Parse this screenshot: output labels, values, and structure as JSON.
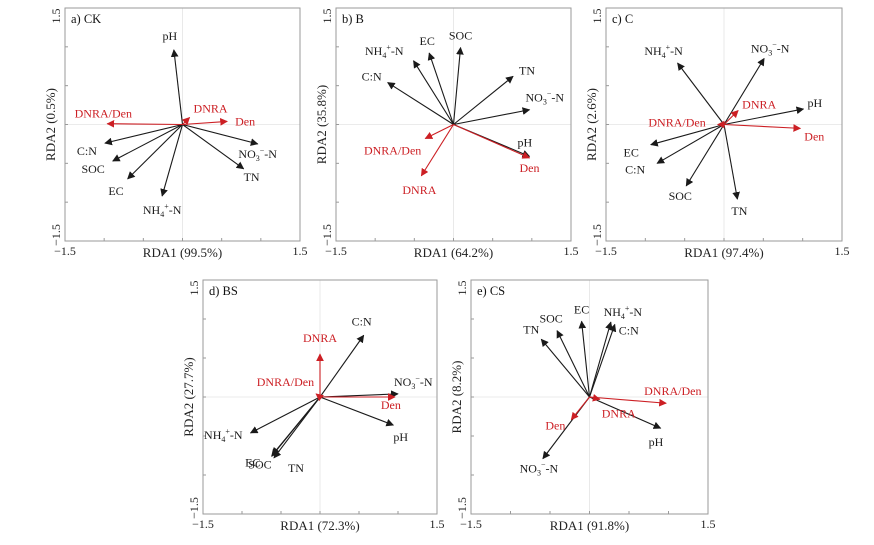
{
  "chart_data": [
    {
      "type": "scatter",
      "subtype": "rda-biplot",
      "panel": "a) CK",
      "xlabel": "RDA1 (99.5%)",
      "ylabel": "RDA2 (0.5%)",
      "xlim": [
        -1.5,
        1.5
      ],
      "ylim": [
        -1.5,
        1.5
      ],
      "x_tick_labels": [
        "−1.5",
        "1.5"
      ],
      "y_tick_labels": [
        "−1.5",
        "1.5"
      ],
      "colors": {
        "environment": "#1a1a1a",
        "response": "#cc1f24"
      },
      "vectors": [
        {
          "name": "pH",
          "group": "environment",
          "x": -0.11,
          "y": 0.96
        },
        {
          "name": "C:N",
          "group": "environment",
          "x": -0.99,
          "y": -0.24
        },
        {
          "name": "SOC",
          "group": "environment",
          "x": -0.89,
          "y": -0.47
        },
        {
          "name": "EC",
          "group": "environment",
          "x": -0.7,
          "y": -0.7
        },
        {
          "name": "NH4+-N",
          "group": "environment",
          "x": -0.26,
          "y": -0.92
        },
        {
          "name": "NO3−-N",
          "group": "environment",
          "x": 0.96,
          "y": -0.25
        },
        {
          "name": "TN",
          "group": "environment",
          "x": 0.78,
          "y": -0.57
        },
        {
          "name": "DNRA/Den",
          "group": "response",
          "x": -0.96,
          "y": 0.01
        },
        {
          "name": "DNRA",
          "group": "response",
          "x": 0.09,
          "y": 0.09
        },
        {
          "name": "Den",
          "group": "response",
          "x": 0.57,
          "y": 0.04
        }
      ]
    },
    {
      "type": "scatter",
      "subtype": "rda-biplot",
      "panel": "b) B",
      "xlabel": "RDA1 (64.2%)",
      "ylabel": "RDA2 (35.8%)",
      "xlim": [
        -1.5,
        1.5
      ],
      "ylim": [
        -1.5,
        1.5
      ],
      "x_tick_labels": [
        "−1.5",
        "1.5"
      ],
      "y_tick_labels": [
        "−1.5",
        "1.5"
      ],
      "colors": {
        "environment": "#1a1a1a",
        "response": "#cc1f24"
      },
      "vectors": [
        {
          "name": "SOC",
          "group": "environment",
          "x": 0.09,
          "y": 0.99
        },
        {
          "name": "EC",
          "group": "environment",
          "x": -0.31,
          "y": 0.92
        },
        {
          "name": "NH4+-N",
          "group": "environment",
          "x": -0.51,
          "y": 0.82
        },
        {
          "name": "C:N",
          "group": "environment",
          "x": -0.84,
          "y": 0.54
        },
        {
          "name": "TN",
          "group": "environment",
          "x": 0.76,
          "y": 0.62
        },
        {
          "name": "NO3−-N",
          "group": "environment",
          "x": 0.97,
          "y": 0.19
        },
        {
          "name": "pH",
          "group": "environment",
          "x": 0.97,
          "y": -0.41
        },
        {
          "name": "Den",
          "group": "response",
          "x": 0.97,
          "y": -0.43
        },
        {
          "name": "DNRA/Den",
          "group": "response",
          "x": -0.36,
          "y": -0.18
        },
        {
          "name": "DNRA",
          "group": "response",
          "x": -0.41,
          "y": -0.66
        }
      ]
    },
    {
      "type": "scatter",
      "subtype": "rda-biplot",
      "panel": "c) C",
      "xlabel": "RDA1 (97.4%)",
      "ylabel": "RDA2 (2.6%)",
      "xlim": [
        -1.5,
        1.5
      ],
      "ylim": [
        -1.5,
        1.5
      ],
      "x_tick_labels": [
        "−1.5",
        "1.5"
      ],
      "y_tick_labels": [
        "−1.5",
        "1.5"
      ],
      "colors": {
        "environment": "#1a1a1a",
        "response": "#cc1f24"
      },
      "vectors": [
        {
          "name": "NH4+-N",
          "group": "environment",
          "x": -0.59,
          "y": 0.79
        },
        {
          "name": "NO3−-N",
          "group": "environment",
          "x": 0.51,
          "y": 0.85
        },
        {
          "name": "pH",
          "group": "environment",
          "x": 1.01,
          "y": 0.2
        },
        {
          "name": "EC",
          "group": "environment",
          "x": -0.93,
          "y": -0.26
        },
        {
          "name": "C:N",
          "group": "environment",
          "x": -0.85,
          "y": -0.5
        },
        {
          "name": "SOC",
          "group": "environment",
          "x": -0.48,
          "y": -0.79
        },
        {
          "name": "TN",
          "group": "environment",
          "x": 0.17,
          "y": -0.96
        },
        {
          "name": "Den",
          "group": "response",
          "x": 0.97,
          "y": -0.05
        },
        {
          "name": "DNRA",
          "group": "response",
          "x": 0.18,
          "y": 0.18
        },
        {
          "name": "DNRA/Den",
          "group": "response",
          "x": -0.08,
          "y": 0.0
        }
      ]
    },
    {
      "type": "scatter",
      "subtype": "rda-biplot",
      "panel": "d) BS",
      "xlabel": "RDA1 (72.3%)",
      "ylabel": "RDA2 (27.7%)",
      "xlim": [
        -1.5,
        1.5
      ],
      "ylim": [
        -1.5,
        1.5
      ],
      "x_tick_labels": [
        "−1.5",
        "1.5"
      ],
      "y_tick_labels": [
        "−1.5",
        "1.5"
      ],
      "colors": {
        "environment": "#1a1a1a",
        "response": "#cc1f24"
      },
      "vectors": [
        {
          "name": "C:N",
          "group": "environment",
          "x": 0.56,
          "y": 0.79
        },
        {
          "name": "NO3−-N",
          "group": "environment",
          "x": 1.0,
          "y": 0.04
        },
        {
          "name": "pH",
          "group": "environment",
          "x": 0.94,
          "y": -0.36
        },
        {
          "name": "NH4+-N",
          "group": "environment",
          "x": -0.89,
          "y": -0.46
        },
        {
          "name": "EC",
          "group": "environment",
          "x": -0.61,
          "y": -0.74
        },
        {
          "name": "SOC",
          "group": "environment",
          "x": -0.62,
          "y": -0.76
        },
        {
          "name": "TN",
          "group": "environment",
          "x": -0.59,
          "y": -0.78
        },
        {
          "name": "DNRA",
          "group": "response",
          "x": 0.0,
          "y": 0.55
        },
        {
          "name": "DNRA/Den",
          "group": "response",
          "x": -0.05,
          "y": 0.04
        },
        {
          "name": "Den",
          "group": "response",
          "x": 0.96,
          "y": 0.0
        }
      ]
    },
    {
      "type": "scatter",
      "subtype": "rda-biplot",
      "panel": "e) CS",
      "xlabel": "RDA1 (91.8%)",
      "ylabel": "RDA2 (8.2%)",
      "xlim": [
        -1.5,
        1.5
      ],
      "ylim": [
        -1.5,
        1.5
      ],
      "x_tick_labels": [
        "−1.5",
        "1.5"
      ],
      "y_tick_labels": [
        "−1.5",
        "1.5"
      ],
      "colors": {
        "environment": "#1a1a1a",
        "response": "#cc1f24"
      },
      "vectors": [
        {
          "name": "TN",
          "group": "environment",
          "x": -0.61,
          "y": 0.74
        },
        {
          "name": "SOC",
          "group": "environment",
          "x": -0.41,
          "y": 0.85
        },
        {
          "name": "EC",
          "group": "environment",
          "x": -0.1,
          "y": 0.97
        },
        {
          "name": "NH4+-N",
          "group": "environment",
          "x": 0.27,
          "y": 0.96
        },
        {
          "name": "C:N",
          "group": "environment",
          "x": 0.32,
          "y": 0.93
        },
        {
          "name": "pH",
          "group": "environment",
          "x": 0.9,
          "y": -0.4
        },
        {
          "name": "NO3−-N",
          "group": "environment",
          "x": -0.59,
          "y": -0.79
        },
        {
          "name": "DNRA/Den",
          "group": "response",
          "x": 0.97,
          "y": -0.08
        },
        {
          "name": "DNRA",
          "group": "response",
          "x": 0.13,
          "y": -0.03
        },
        {
          "name": "Den",
          "group": "response",
          "x": -0.23,
          "y": -0.29
        }
      ]
    }
  ]
}
